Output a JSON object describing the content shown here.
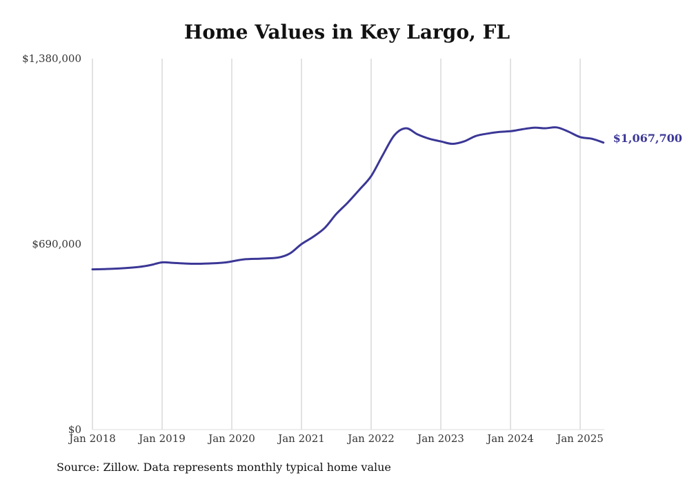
{
  "chart_data": {
    "type": "line",
    "title": "Home Values in Key Largo, FL",
    "xlabel": "",
    "ylabel": "",
    "ylim": [
      0,
      1380000
    ],
    "y_ticks": [
      0,
      690000,
      1380000
    ],
    "y_tick_labels": [
      "$0",
      "$690,000",
      "$1,380,000"
    ],
    "x_ticks": [
      "2018-01",
      "2019-01",
      "2020-01",
      "2021-01",
      "2022-01",
      "2023-01",
      "2024-01",
      "2025-01"
    ],
    "x_tick_labels": [
      "Jan 2018",
      "Jan 2019",
      "Jan 2020",
      "Jan 2021",
      "Jan 2022",
      "Jan 2023",
      "Jan 2024",
      "Jan 2025"
    ],
    "grid": {
      "x": true,
      "y": false
    },
    "color": "#3b3796",
    "end_label": "$1,067,700",
    "x": [
      "2018-01",
      "2018-03",
      "2018-06",
      "2018-09",
      "2018-11",
      "2019-01",
      "2019-03",
      "2019-06",
      "2019-09",
      "2019-12",
      "2020-03",
      "2020-06",
      "2020-09",
      "2020-11",
      "2021-01",
      "2021-03",
      "2021-05",
      "2021-07",
      "2021-09",
      "2021-11",
      "2022-01",
      "2022-03",
      "2022-05",
      "2022-07",
      "2022-09",
      "2022-11",
      "2023-01",
      "2023-03",
      "2023-05",
      "2023-07",
      "2023-09",
      "2023-11",
      "2024-01",
      "2024-03",
      "2024-05",
      "2024-07",
      "2024-09",
      "2024-11",
      "2025-01",
      "2025-03",
      "2025-05"
    ],
    "values": [
      596000,
      597000,
      600000,
      605000,
      612000,
      622000,
      620000,
      617000,
      618000,
      622000,
      633000,
      636000,
      640000,
      655000,
      690000,
      717000,
      750000,
      802000,
      845000,
      893000,
      943000,
      1021000,
      1095000,
      1121000,
      1098000,
      1082000,
      1072000,
      1063000,
      1072000,
      1092000,
      1101000,
      1107000,
      1110000,
      1117000,
      1123000,
      1121000,
      1124000,
      1108000,
      1088000,
      1082000,
      1067700
    ],
    "source": "Source: Zillow. Data represents monthly typical home value"
  }
}
